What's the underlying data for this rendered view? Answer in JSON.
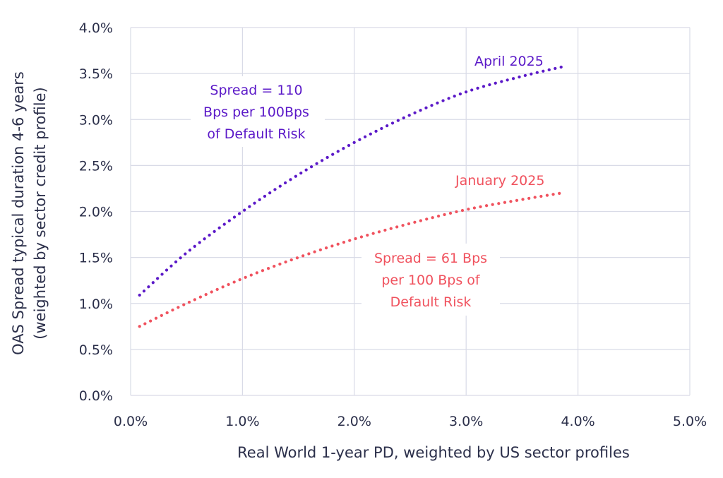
{
  "chart_data": {
    "type": "line",
    "xlabel": "Real World 1-year PD, weighted by US sector profiles",
    "ylabel_lines": [
      "OAS Spread typical duration 4-6 years",
      "(weighted by sector credit profile)"
    ],
    "xlim": [
      0,
      5
    ],
    "ylim": [
      0,
      4
    ],
    "x_ticks": [
      0,
      1,
      2,
      3,
      4,
      5
    ],
    "x_tick_labels": [
      "0.0%",
      "1.0%",
      "2.0%",
      "3.0%",
      "4.0%",
      "5.0%"
    ],
    "y_ticks": [
      0,
      0.5,
      1,
      1.5,
      2,
      2.5,
      3,
      3.5,
      4
    ],
    "y_tick_labels": [
      "0.0%",
      "0.5%",
      "1.0%",
      "1.5%",
      "2.0%",
      "2.5%",
      "3.0%",
      "3.5%",
      "4.0%"
    ],
    "grid": true,
    "series": [
      {
        "name": "April 2025",
        "color": "#5b19c8",
        "x": [
          0.08,
          0.5,
          1.0,
          1.5,
          2.0,
          2.5,
          3.0,
          3.5,
          3.85
        ],
        "y": [
          1.09,
          1.55,
          2.0,
          2.4,
          2.75,
          3.05,
          3.3,
          3.47,
          3.57
        ]
      },
      {
        "name": "January 2025",
        "color": "#f0525e",
        "x": [
          0.08,
          0.5,
          1.0,
          1.5,
          2.0,
          2.5,
          3.0,
          3.5,
          3.85
        ],
        "y": [
          0.75,
          1.0,
          1.27,
          1.5,
          1.7,
          1.87,
          2.02,
          2.13,
          2.2
        ]
      }
    ],
    "annotations": [
      {
        "series": 0,
        "lines": [
          "Spread = 110",
          "Bps per 100Bps",
          "of Default Risk"
        ]
      },
      {
        "series": 1,
        "lines": [
          "Spread = 61 Bps",
          "per 100 Bps of",
          "Default Risk"
        ]
      }
    ]
  }
}
